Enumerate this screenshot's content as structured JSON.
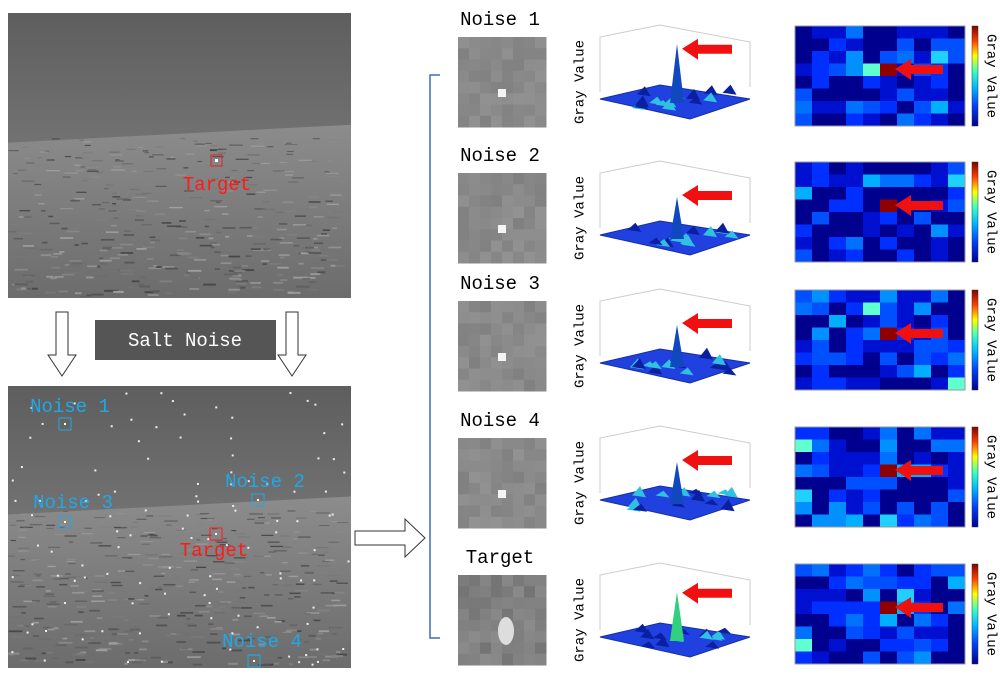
{
  "original_image": {
    "target_label": "Target"
  },
  "process": {
    "label": "Salt Noise"
  },
  "noisy_image": {
    "labels": [
      "Noise 1",
      "Noise 2",
      "Noise 3",
      "Target",
      "Noise 4"
    ]
  },
  "rows": [
    {
      "title": "Noise 1",
      "surface_axis_label": "Gray Value",
      "colorbar_label": "Gray Value"
    },
    {
      "title": "Noise 2",
      "surface_axis_label": "Gray Value",
      "colorbar_label": "Gray Value"
    },
    {
      "title": "Noise 3",
      "surface_axis_label": "Gray Value",
      "colorbar_label": "Gray Value"
    },
    {
      "title": "Noise 4",
      "surface_axis_label": "Gray Value",
      "colorbar_label": "Gray Value"
    },
    {
      "title": "Target",
      "surface_axis_label": "Gray Value",
      "colorbar_label": "Gray Value"
    }
  ]
}
